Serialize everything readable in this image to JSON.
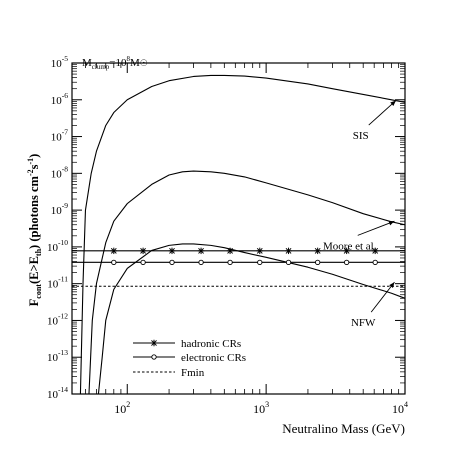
{
  "chart_data": {
    "type": "line",
    "title": "",
    "annotation": {
      "main": "M",
      "sub": "clump",
      "mid": "=10",
      "sup": "8",
      "tail": "M",
      "sun": "☉"
    },
    "xlabel": "Neutralino Mass (GeV)",
    "ylabel": {
      "main": "F",
      "main_sub": "cont",
      "paren_open": "(E>E",
      "paren_sub": "th",
      "paren_close": ") (photons cm",
      "sup1": "-2",
      "mid": "s",
      "sup2": "-1",
      "end": ")"
    },
    "x_scale": "log",
    "y_scale": "log",
    "xlim": [
      40,
      10000
    ],
    "ylim": [
      1e-14,
      1e-05
    ],
    "x_ticks": [
      {
        "value": 100,
        "base": "10",
        "exp": "2"
      },
      {
        "value": 1000,
        "base": "10",
        "exp": "3"
      },
      {
        "value": 10000,
        "base": "10",
        "exp": "4"
      }
    ],
    "y_ticks": [
      {
        "value": 1e-14,
        "base": "10",
        "exp": "-14"
      },
      {
        "value": 1e-13,
        "base": "10",
        "exp": "-13"
      },
      {
        "value": 1e-12,
        "base": "10",
        "exp": "-12"
      },
      {
        "value": 1e-11,
        "base": "10",
        "exp": "-11"
      },
      {
        "value": 1e-10,
        "base": "10",
        "exp": "-10"
      },
      {
        "value": 1e-09,
        "base": "10",
        "exp": "-9"
      },
      {
        "value": 1e-08,
        "base": "10",
        "exp": "-8"
      },
      {
        "value": 1e-07,
        "base": "10",
        "exp": "-7"
      },
      {
        "value": 1e-06,
        "base": "10",
        "exp": "-6"
      },
      {
        "value": 1e-05,
        "base": "10",
        "exp": "-5"
      }
    ],
    "series": [
      {
        "name": "SIS",
        "style": "solid",
        "x": [
          46,
          48,
          50,
          55,
          60,
          70,
          80,
          100,
          150,
          200,
          300,
          400,
          500,
          700,
          1000,
          2000,
          3000,
          5000,
          8000,
          10000
        ],
        "y": [
          1e-14,
          1e-11,
          1e-09,
          1e-08,
          4e-08,
          2e-07,
          4.5e-07,
          1e-06,
          2.3e-06,
          3.3e-06,
          4.3e-06,
          4.6e-06,
          4.6e-06,
          4.4e-06,
          3.9e-06,
          2.7e-06,
          2e-06,
          1.4e-06,
          1e-06,
          8.5e-07
        ]
      },
      {
        "name": "Moore et al.",
        "style": "solid",
        "x": [
          53,
          56,
          60,
          70,
          80,
          100,
          150,
          200,
          250,
          300,
          400,
          500,
          700,
          1000,
          2000,
          3000,
          5000,
          8000,
          10000
        ],
        "y": [
          1e-14,
          1e-12,
          1e-11,
          1.3e-10,
          5e-10,
          1.5e-09,
          5e-09,
          9e-09,
          1.1e-08,
          1.15e-08,
          1.1e-08,
          1e-08,
          8e-09,
          5.5e-09,
          2.6e-09,
          1.6e-09,
          8e-10,
          4.8e-10,
          4e-10
        ]
      },
      {
        "name": "NFW",
        "style": "solid",
        "x": [
          62,
          66,
          70,
          80,
          100,
          150,
          200,
          250,
          300,
          400,
          500,
          700,
          1000,
          2000,
          3000,
          5000,
          8000,
          10000
        ],
        "y": [
          1e-14,
          1e-13,
          1e-12,
          7e-12,
          2.6e-11,
          8e-11,
          1.1e-10,
          1.2e-10,
          1.2e-10,
          1.1e-10,
          9.5e-11,
          7e-11,
          5.2e-11,
          2.8e-11,
          1.8e-11,
          9.5e-12,
          5.5e-12,
          4e-12
        ]
      },
      {
        "name": "hadronic CRs",
        "style": "star",
        "x": [
          40,
          10000
        ],
        "y": [
          7.8e-11,
          7.8e-11
        ],
        "marker_x": [
          80,
          130,
          210,
          340,
          550,
          900,
          1450,
          2350,
          3800,
          6100
        ]
      },
      {
        "name": "electronic CRs",
        "style": "circle",
        "x": [
          40,
          10000
        ],
        "y": [
          3.8e-11,
          3.8e-11
        ],
        "marker_x": [
          80,
          130,
          210,
          340,
          550,
          900,
          1450,
          2350,
          3800,
          6100
        ]
      },
      {
        "name": "Fmin",
        "style": "dashed",
        "x": [
          40,
          10000
        ],
        "y": [
          8.5e-12,
          8.5e-12
        ]
      }
    ],
    "curve_labels": [
      {
        "text": "SIS",
        "label_at": [
          4800,
          1.1e-07
        ],
        "arrow_to": [
          8600,
          9.5e-07
        ]
      },
      {
        "text": "Moore et al.",
        "label_at": [
          4000,
          1.1e-10
        ],
        "arrow_to": [
          8400,
          5e-10
        ]
      },
      {
        "text": "NFW",
        "label_at": [
          5000,
          9e-13
        ],
        "arrow_to": [
          8400,
          1.1e-11
        ]
      }
    ],
    "legend": {
      "placement": "bottom-left",
      "entries": [
        "hadronic CRs",
        "electronic CRs",
        "Fmin"
      ]
    },
    "grid": false
  }
}
